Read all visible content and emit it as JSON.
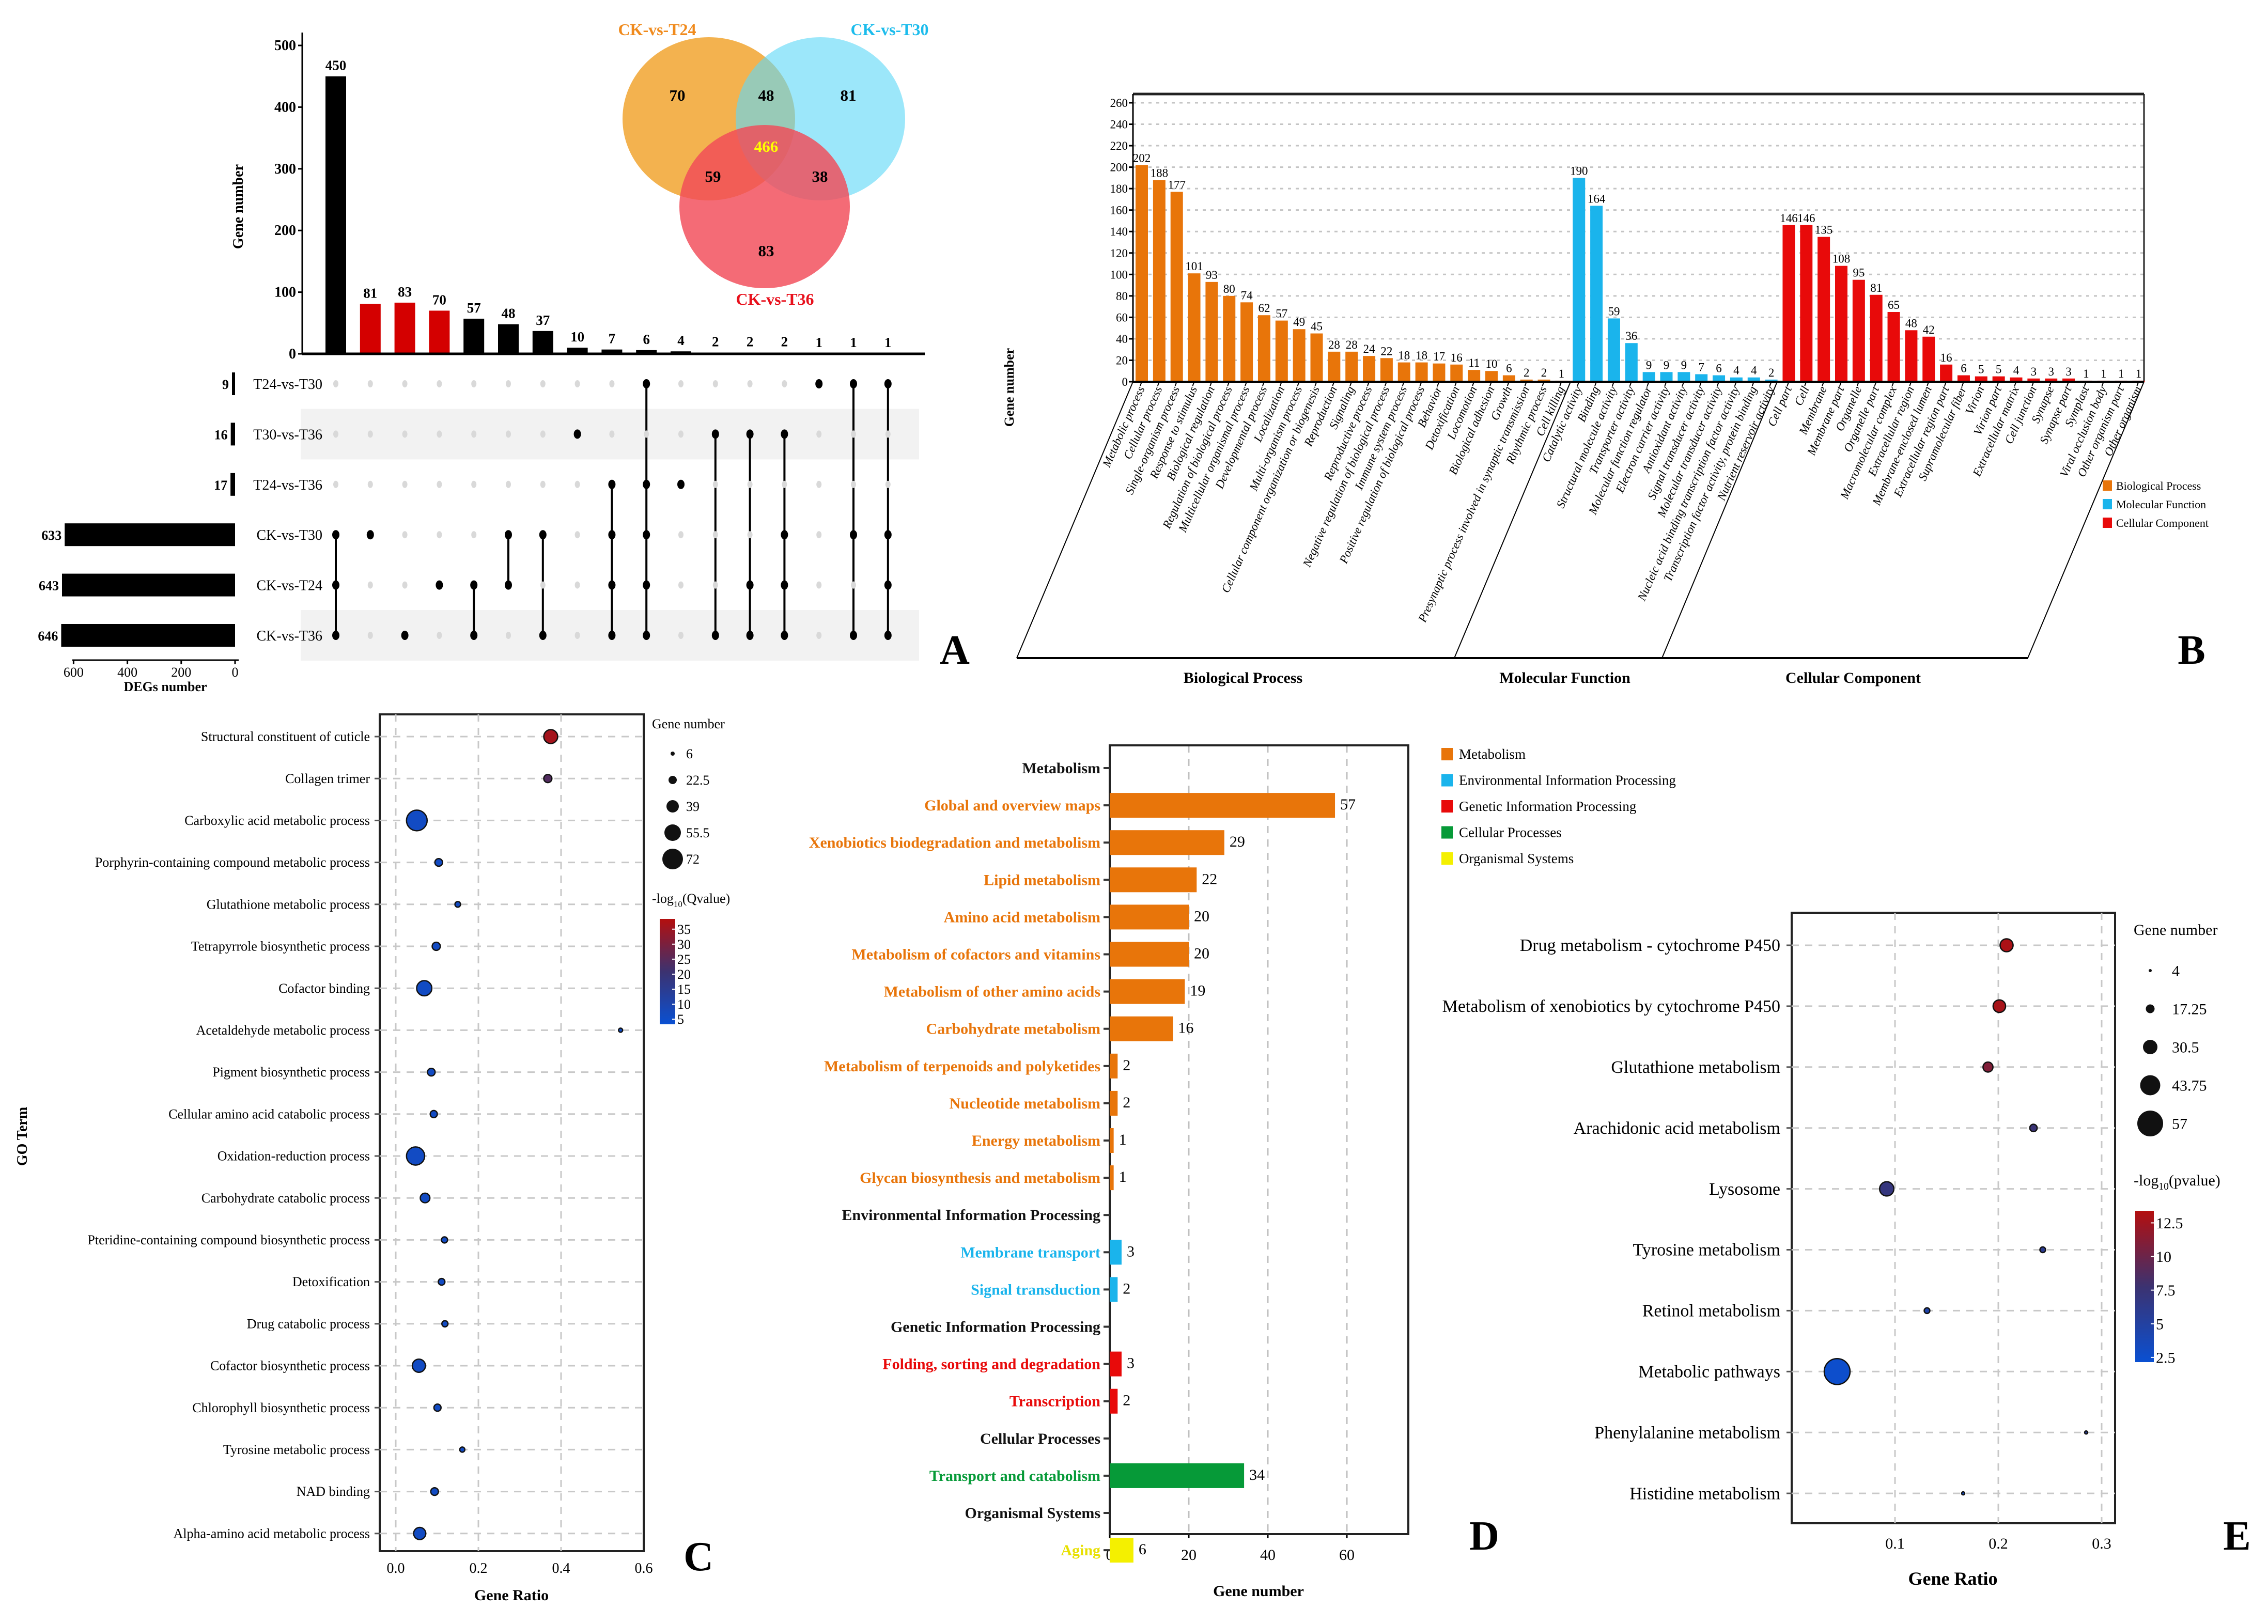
{
  "panel_labels": {
    "a": "A",
    "b": "B",
    "c": "C",
    "d": "D",
    "e": "E"
  },
  "chart_data": [
    {
      "type": "bar",
      "subtype": "upset",
      "panel": "A",
      "ylabel": "Gene number",
      "ylim": [
        0,
        520
      ],
      "yticks": [
        0,
        100,
        200,
        300,
        400,
        500
      ],
      "highlight_color": "#d40000",
      "intersections": [
        {
          "value": 450,
          "sets": [
            3,
            4,
            5
          ],
          "highlight": false
        },
        {
          "value": 81,
          "sets": [
            3
          ],
          "highlight": true
        },
        {
          "value": 83,
          "sets": [
            5
          ],
          "highlight": true
        },
        {
          "value": 70,
          "sets": [
            4
          ],
          "highlight": true
        },
        {
          "value": 57,
          "sets": [
            4,
            5
          ],
          "highlight": false
        },
        {
          "value": 48,
          "sets": [
            3,
            4
          ],
          "highlight": false
        },
        {
          "value": 37,
          "sets": [
            3,
            5
          ],
          "highlight": false
        },
        {
          "value": 10,
          "sets": [
            1
          ],
          "highlight": false
        },
        {
          "value": 7,
          "sets": [
            2,
            3,
            4,
            5
          ],
          "highlight": false
        },
        {
          "value": 6,
          "sets": [
            0,
            2,
            3,
            4,
            5
          ],
          "highlight": false
        },
        {
          "value": 4,
          "sets": [
            2
          ],
          "highlight": false
        },
        {
          "value": 2,
          "sets": [
            1,
            5
          ],
          "highlight": false
        },
        {
          "value": 2,
          "sets": [
            1,
            4,
            5
          ],
          "highlight": false
        },
        {
          "value": 2,
          "sets": [
            1,
            3,
            4,
            5
          ],
          "highlight": false
        },
        {
          "value": 1,
          "sets": [
            0
          ],
          "highlight": false
        },
        {
          "value": 1,
          "sets": [
            0,
            3,
            5
          ],
          "highlight": false
        },
        {
          "value": 1,
          "sets": [
            0,
            3,
            4,
            5
          ],
          "highlight": false
        }
      ],
      "sets": [
        {
          "name": "T24-vs-T30",
          "size": 9
        },
        {
          "name": "T30-vs-T36",
          "size": 16
        },
        {
          "name": "T24-vs-T36",
          "size": 17
        },
        {
          "name": "CK-vs-T30",
          "size": 633
        },
        {
          "name": "CK-vs-T24",
          "size": 643
        },
        {
          "name": "CK-vs-T36",
          "size": 646
        }
      ],
      "set_axis": {
        "label": "DEGs number",
        "ticks": [
          600,
          400,
          200,
          0
        ]
      }
    },
    {
      "type": "venn",
      "panel": "A",
      "sets": [
        {
          "name": "CK-vs-T24",
          "color": "#f08a1c",
          "fill": "#f3b24f"
        },
        {
          "name": "CK-vs-T30",
          "color": "#1cbcec",
          "fill": "#5fd9f7"
        },
        {
          "name": "CK-vs-T36",
          "color": "#e8101c",
          "fill": "#f24a58"
        }
      ],
      "regions": {
        "T24_only": 70,
        "T24_T30": 48,
        "T30_only": 81,
        "all_three": 466,
        "T24_T36": 59,
        "T30_T36": 38,
        "T36_only": 83
      },
      "center_color": "#ffff00"
    },
    {
      "type": "bar",
      "panel": "B",
      "ylabel": "Gene number",
      "ylim": [
        0,
        265
      ],
      "yticks": [
        0,
        20,
        40,
        60,
        80,
        100,
        120,
        140,
        160,
        180,
        200,
        220,
        240,
        260
      ],
      "groups": [
        {
          "name": "Biological Process",
          "color": "#e8750a",
          "categories": [
            "Metabolic process",
            "Cellular process",
            "Single-organism process",
            "Response to stimulus",
            "Biological regulation",
            "Regulation of biological process",
            "Multicellular organismal process",
            "Developmental process",
            "Localization",
            "Multi-organism process",
            "Cellular component organization or biogenesis",
            "Reproduction",
            "Signaling",
            "Reproductive process",
            "Negative regulation of biological process",
            "Immune system process",
            "Positive regulation of biological process",
            "Behavior",
            "Detoxification",
            "Locomotion",
            "Biological adhesion",
            "Growth",
            "Presynaptic process involved in synaptic transmission",
            "Rhythmic process",
            "Cell killing"
          ],
          "values": [
            202,
            188,
            177,
            101,
            93,
            80,
            74,
            62,
            57,
            49,
            45,
            28,
            28,
            24,
            22,
            18,
            18,
            17,
            16,
            11,
            10,
            6,
            2,
            2,
            1
          ]
        },
        {
          "name": "Molecular Function",
          "color": "#1ab4ec",
          "categories": [
            "Catalytic activity",
            "Binding",
            "Structural molecule activity",
            "Transporter activity",
            "Molecular function regulator",
            "Electron carrier activity",
            "Antioxidant activity",
            "Signal transducer activity",
            "Molecular transducer activity",
            "Nucleic acid binding transcription factor activity",
            "Transcription factor activity, protein binding",
            "Nutrient reservoir activity"
          ],
          "values": [
            190,
            164,
            59,
            36,
            9,
            9,
            9,
            7,
            6,
            4,
            4,
            2
          ]
        },
        {
          "name": "Cellular Component",
          "color": "#e80a0a",
          "categories": [
            "Cell part",
            "Cell",
            "Membrane",
            "Membrane part",
            "Organelle",
            "Organelle part",
            "Macromolecular complex",
            "Extracellular region",
            "Membrane-enclosed lumen",
            "Extracellular region part",
            "Supramolecular fiber",
            "Virion",
            "Virion part",
            "Extracellular matrix",
            "Cell junction",
            "Synapse",
            "Synapse part",
            "Symplast",
            "Viral occlusion body",
            "Other organism part",
            "Other organism"
          ],
          "values": [
            146,
            146,
            135,
            108,
            95,
            81,
            65,
            48,
            42,
            16,
            6,
            5,
            5,
            4,
            3,
            3,
            3,
            1,
            1,
            1,
            1
          ]
        }
      ],
      "legend": [
        "Biological Process",
        "Molecular Function",
        "Cellular Component"
      ],
      "legend_placement": "right",
      "grid": true
    },
    {
      "type": "scatter",
      "panel": "C",
      "xlabel": "Gene Ratio",
      "ylabel": "GO Term",
      "xlim": [
        -0.04,
        0.6
      ],
      "xticks": [
        0,
        0.2,
        0.4,
        0.6
      ],
      "xtick_labels": [
        "0.0",
        "0.2",
        "0.4",
        "0.6"
      ],
      "points": [
        {
          "term": "Structural constituent of cuticle",
          "ratio": 0.375,
          "genes": 45,
          "q": 36
        },
        {
          "term": "Collagen trimer",
          "ratio": 0.368,
          "genes": 22,
          "q": 24
        },
        {
          "term": "Carboxylic acid metabolic process",
          "ratio": 0.051,
          "genes": 72,
          "q": 6
        },
        {
          "term": "Porphyrin-containing compound metabolic process",
          "ratio": 0.104,
          "genes": 20,
          "q": 6
        },
        {
          "term": "Glutathione metabolic process",
          "ratio": 0.15,
          "genes": 12,
          "q": 6
        },
        {
          "term": "Tetrapyrrole biosynthetic process",
          "ratio": 0.098,
          "genes": 22,
          "q": 6
        },
        {
          "term": "Cofactor binding",
          "ratio": 0.069,
          "genes": 50,
          "q": 6
        },
        {
          "term": "Acetaldehyde metabolic process",
          "ratio": 0.544,
          "genes": 6,
          "q": 5
        },
        {
          "term": "Pigment biosynthetic process",
          "ratio": 0.086,
          "genes": 20,
          "q": 6
        },
        {
          "term": "Cellular amino acid catabolic process",
          "ratio": 0.092,
          "genes": 18,
          "q": 6
        },
        {
          "term": "Oxidation-reduction process",
          "ratio": 0.048,
          "genes": 62,
          "q": 6
        },
        {
          "term": "Carbohydrate catabolic process",
          "ratio": 0.071,
          "genes": 28,
          "q": 6
        },
        {
          "term": "Pteridine-containing compound biosynthetic process",
          "ratio": 0.118,
          "genes": 14,
          "q": 6
        },
        {
          "term": "Detoxification",
          "ratio": 0.111,
          "genes": 16,
          "q": 6
        },
        {
          "term": "Drug catabolic process",
          "ratio": 0.119,
          "genes": 14,
          "q": 6
        },
        {
          "term": "Cofactor biosynthetic process",
          "ratio": 0.056,
          "genes": 42,
          "q": 6
        },
        {
          "term": "Chlorophyll biosynthetic process",
          "ratio": 0.101,
          "genes": 18,
          "q": 6
        },
        {
          "term": "Tyrosine metabolic process",
          "ratio": 0.161,
          "genes": 10,
          "q": 6
        },
        {
          "term": "NAD binding",
          "ratio": 0.094,
          "genes": 20,
          "q": 6
        },
        {
          "term": "Alpha-amino acid metabolic process",
          "ratio": 0.058,
          "genes": 38,
          "q": 6
        }
      ],
      "size_legend": {
        "title": "Gene number",
        "values": [
          6,
          22.5,
          39,
          55.5,
          72
        ],
        "labels": [
          "6",
          "22.5",
          "39",
          "55.5",
          "72"
        ]
      },
      "color_legend": {
        "title_prefix": "-log",
        "title_sub": "10",
        "title_suffix": "(Qvalue)",
        "ticks": [
          35,
          30,
          25,
          20,
          15,
          10,
          5
        ],
        "range": [
          3.3,
          38.4
        ],
        "low_color": "#0a50d2",
        "high_color": "#b40f0f"
      }
    },
    {
      "type": "bar",
      "orientation": "horizontal",
      "panel": "D",
      "xlabel": "Gene number",
      "xlim": [
        0,
        75.6
      ],
      "xticks": [
        0,
        20,
        40,
        60
      ],
      "rows": [
        {
          "label": "Metabolism",
          "header": true
        },
        {
          "label": "Global and overview maps",
          "value": 57,
          "group": 0
        },
        {
          "label": "Xenobiotics biodegradation and metabolism",
          "value": 29,
          "group": 0
        },
        {
          "label": "Lipid metabolism",
          "value": 22,
          "group": 0
        },
        {
          "label": "Amino acid metabolism",
          "value": 20,
          "group": 0
        },
        {
          "label": "Metabolism of cofactors and vitamins",
          "value": 20,
          "group": 0
        },
        {
          "label": "Metabolism of other amino acids",
          "value": 19,
          "group": 0
        },
        {
          "label": "Carbohydrate metabolism",
          "value": 16,
          "group": 0
        },
        {
          "label": "Metabolism of terpenoids and polyketides",
          "value": 2,
          "group": 0
        },
        {
          "label": "Nucleotide metabolism",
          "value": 2,
          "group": 0
        },
        {
          "label": "Energy metabolism",
          "value": 1,
          "group": 0
        },
        {
          "label": "Glycan biosynthesis and metabolism",
          "value": 1,
          "group": 0
        },
        {
          "label": "Environmental Information Processing",
          "header": true
        },
        {
          "label": "Membrane transport",
          "value": 3,
          "group": 1
        },
        {
          "label": "Signal transduction",
          "value": 2,
          "group": 1
        },
        {
          "label": "Genetic Information Processing",
          "header": true
        },
        {
          "label": "Folding, sorting and degradation",
          "value": 3,
          "group": 2
        },
        {
          "label": "Transcription",
          "value": 2,
          "group": 2
        },
        {
          "label": "Cellular Processes",
          "header": true
        },
        {
          "label": "Transport and catabolism",
          "value": 34,
          "group": 3
        },
        {
          "label": "Organismal Systems",
          "header": true
        },
        {
          "label": "Aging",
          "value": 6,
          "group": 4
        }
      ],
      "legend": [
        {
          "name": "Metabolism",
          "color": "#e8750a"
        },
        {
          "name": "Environmental Information Processing",
          "color": "#1ab4ec"
        },
        {
          "name": "Genetic Information Processing",
          "color": "#e80a0a"
        },
        {
          "name": "Cellular Processes",
          "color": "#069a38"
        },
        {
          "name": "Organismal Systems",
          "color": "#f4f000"
        }
      ],
      "legend_placement": "top-right",
      "grid": true
    },
    {
      "type": "scatter",
      "panel": "E",
      "xlabel": "Gene Ratio",
      "xlim": [
        0.0,
        0.313
      ],
      "xticks": [
        0.1,
        0.2,
        0.3
      ],
      "xtick_labels": [
        "0.1",
        "0.2",
        "0.3"
      ],
      "points": [
        {
          "term": "Drug metabolism - cytochrome P450",
          "ratio": 0.208,
          "genes": 27,
          "p": 13
        },
        {
          "term": "Metabolism of xenobiotics by cytochrome P450",
          "ratio": 0.201,
          "genes": 26,
          "p": 12.8
        },
        {
          "term": "Glutathione metabolism",
          "ratio": 0.19,
          "genes": 20,
          "p": 11
        },
        {
          "term": "Arachidonic acid metabolism",
          "ratio": 0.234,
          "genes": 14,
          "p": 7.5
        },
        {
          "term": "Lysosome",
          "ratio": 0.092,
          "genes": 30,
          "p": 7
        },
        {
          "term": "Tyrosine metabolism",
          "ratio": 0.243,
          "genes": 10,
          "p": 6
        },
        {
          "term": "Retinol metabolism",
          "ratio": 0.131,
          "genes": 10,
          "p": 4.5
        },
        {
          "term": "Metabolic pathways",
          "ratio": 0.044,
          "genes": 57,
          "p": 2.5
        },
        {
          "term": "Phenylalanine metabolism",
          "ratio": 0.285,
          "genes": 4,
          "p": 5.5
        },
        {
          "term": "Histidine metabolism",
          "ratio": 0.166,
          "genes": 4,
          "p": 3
        }
      ],
      "size_legend": {
        "title": "Gene number",
        "values": [
          4,
          17.25,
          30.5,
          43.75,
          57
        ],
        "labels": [
          "4",
          "17.25",
          "30.5",
          "43.75",
          "57"
        ]
      },
      "color_legend": {
        "title_prefix": "-log",
        "title_sub": "10",
        "title_suffix": "(pvalue)",
        "ticks": [
          12.5,
          10,
          7.5,
          5,
          2.5
        ],
        "tick_labels": [
          "12.5",
          "10",
          "7.5",
          "5",
          "2.5"
        ],
        "range": [
          2.15,
          13.4
        ],
        "low_color": "#0a50d2",
        "high_color": "#b40f0f"
      }
    }
  ]
}
